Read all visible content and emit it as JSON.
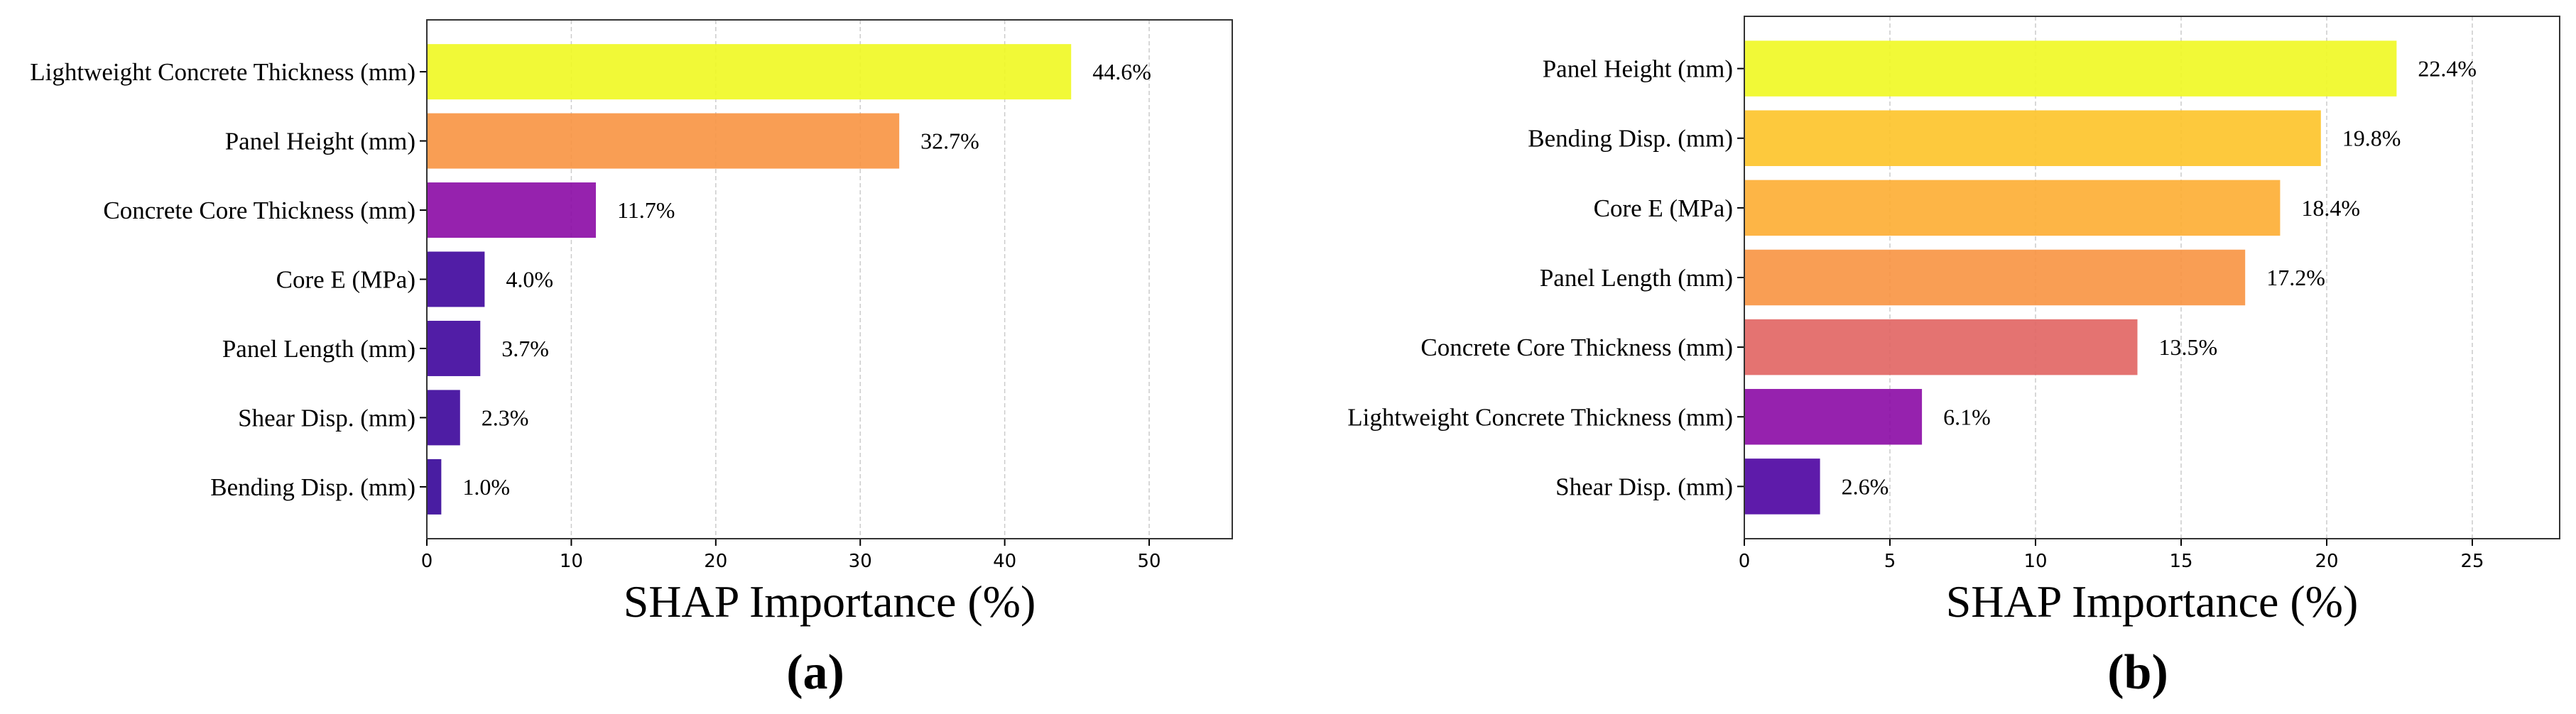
{
  "chart_data": [
    {
      "type": "barh",
      "panel_label": "(a)",
      "xlabel": "SHAP Importance (%)",
      "categories": [
        "Lightweight Concrete Thickness (mm)",
        "Panel Height (mm)",
        "Concrete Core Thickness (mm)",
        "Core E (MPa)",
        "Panel Length (mm)",
        "Shear Disp. (mm)",
        "Bending Disp. (mm)"
      ],
      "values": [
        44.6,
        32.7,
        11.7,
        4.0,
        3.7,
        2.3,
        1.0
      ],
      "value_labels": [
        "44.6%",
        "32.7%",
        "11.7%",
        "4.0%",
        "3.7%",
        "2.3%",
        "1.0%"
      ],
      "colors": [
        "#eff821",
        "#f89441",
        "#8b0aa5",
        "#3e049c",
        "#3e049c",
        "#3b049a",
        "#350498"
      ],
      "xlim": [
        0,
        55.75
      ],
      "xticks": [
        0,
        10,
        20,
        30,
        40,
        50
      ],
      "grid": true
    },
    {
      "type": "barh",
      "panel_label": "(b)",
      "xlabel": "SHAP Importance (%)",
      "categories": [
        "Panel Height (mm)",
        "Bending Disp. (mm)",
        "Core E (MPa)",
        "Panel Length (mm)",
        "Concrete Core Thickness (mm)",
        "Lightweight Concrete Thickness (mm)",
        "Shear Disp. (mm)"
      ],
      "values": [
        22.4,
        19.8,
        18.4,
        17.2,
        13.5,
        6.1,
        2.6
      ],
      "value_labels": [
        "22.4%",
        "19.8%",
        "18.4%",
        "17.2%",
        "13.5%",
        "6.1%",
        "2.6%"
      ],
      "colors": [
        "#eff821",
        "#fdc328",
        "#fdad32",
        "#f89441",
        "#e16462",
        "#8b0aa5",
        "#4c02a1"
      ],
      "xlim": [
        0,
        28
      ],
      "xticks": [
        0,
        5,
        10,
        15,
        20,
        25
      ],
      "grid": true
    }
  ]
}
